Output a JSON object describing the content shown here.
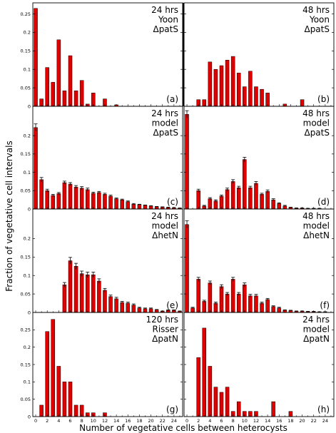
{
  "figure": {
    "xlabel": "Number of vegetative cells between heterocysts",
    "ylabel": "Fraction of vegetative cell intervals"
  },
  "colors": {
    "bar": "#e00000",
    "bar_edge": "#000000",
    "error_bar": "#000000"
  },
  "chart_data": [
    {
      "type": "bar",
      "panel": "(a)",
      "lines": [
        "24 hrs",
        "Yoon",
        "ΔpatS"
      ],
      "x": [
        0,
        1,
        2,
        3,
        4,
        5,
        6,
        7,
        8,
        9,
        10,
        11,
        12,
        13,
        14,
        15,
        16,
        17,
        18,
        19,
        20,
        21,
        22,
        23,
        24,
        25
      ],
      "values": [
        0.265,
        0.02,
        0.105,
        0.065,
        0.18,
        0.042,
        0.137,
        0.042,
        0.07,
        0.006,
        0.036,
        0,
        0.02,
        0,
        0.004,
        0,
        0,
        0,
        0,
        0,
        0,
        0,
        0,
        0,
        0,
        0
      ],
      "ylim": [
        0,
        0.28
      ],
      "yticks": [
        0,
        0.05,
        0.1,
        0.15,
        0.2,
        0.25
      ],
      "xticks": [
        0,
        2,
        4,
        6,
        8,
        10,
        12,
        14,
        16,
        18,
        20,
        22,
        24
      ]
    },
    {
      "type": "bar",
      "panel": "(b)",
      "lines": [
        "48 hrs",
        "Yoon",
        "ΔpatS"
      ],
      "x": [
        0,
        1,
        2,
        3,
        4,
        5,
        6,
        7,
        8,
        9,
        10,
        11,
        12,
        13,
        14,
        15,
        16,
        17,
        18,
        19,
        20,
        21,
        22,
        23,
        24,
        25
      ],
      "values": [
        0,
        0,
        0.018,
        0.018,
        0.12,
        0.1,
        0.11,
        0.125,
        0.135,
        0.09,
        0.053,
        0.095,
        0.053,
        0.046,
        0.036,
        0,
        0,
        0.006,
        0,
        0,
        0.018,
        0,
        0,
        0,
        0,
        0
      ],
      "ylim": [
        0,
        0.28
      ],
      "yticks": [
        0,
        0.05,
        0.1,
        0.15,
        0.2,
        0.25
      ],
      "xticks": [
        0,
        2,
        4,
        6,
        8,
        10,
        12,
        14,
        16,
        18,
        20,
        22,
        24
      ]
    },
    {
      "type": "bar",
      "panel": "(c)",
      "lines": [
        "24 hrs",
        "model",
        "ΔpatS"
      ],
      "x": [
        0,
        1,
        2,
        3,
        4,
        5,
        6,
        7,
        8,
        9,
        10,
        11,
        12,
        13,
        14,
        15,
        16,
        17,
        18,
        19,
        20,
        21,
        22,
        23,
        24,
        25
      ],
      "values": [
        0.222,
        0.08,
        0.05,
        0.037,
        0.042,
        0.072,
        0.068,
        0.06,
        0.057,
        0.053,
        0.043,
        0.045,
        0.04,
        0.035,
        0.028,
        0.025,
        0.02,
        0.013,
        0.012,
        0.01,
        0.008,
        0.006,
        0.005,
        0.004,
        0.003,
        0.002
      ],
      "errors": [
        0.01,
        0.006,
        0.004,
        0.003,
        0.003,
        0.004,
        0.004,
        0.004,
        0.004,
        0.004,
        0.003,
        0.003,
        0.003,
        0.003,
        0.002,
        0.002,
        0.002,
        0.002,
        0.001,
        0.001,
        0.001,
        0.001,
        0.001,
        0.001,
        0.001,
        0.001
      ],
      "ylim": [
        0,
        0.28
      ],
      "yticks": [
        0,
        0.05,
        0.1,
        0.15,
        0.2
      ],
      "xticks": [
        0,
        2,
        4,
        6,
        8,
        10,
        12,
        14,
        16,
        18,
        20,
        22,
        24
      ]
    },
    {
      "type": "bar",
      "panel": "(d)",
      "lines": [
        "48 hrs",
        "model",
        "ΔpatS"
      ],
      "x": [
        0,
        1,
        2,
        3,
        4,
        5,
        6,
        7,
        8,
        9,
        10,
        11,
        12,
        13,
        14,
        15,
        16,
        17,
        18,
        19,
        20,
        21,
        22,
        23,
        24,
        25
      ],
      "values": [
        0.258,
        0,
        0.05,
        0.008,
        0.028,
        0.022,
        0.035,
        0.053,
        0.075,
        0.058,
        0.135,
        0.058,
        0.07,
        0.04,
        0.048,
        0.025,
        0.015,
        0.008,
        0.004,
        0.002,
        0.002,
        0.001,
        0.001,
        0.001,
        0,
        0
      ],
      "errors": [
        0.01,
        0,
        0.004,
        0.002,
        0.003,
        0.003,
        0.003,
        0.004,
        0.005,
        0.004,
        0.006,
        0.004,
        0.005,
        0.003,
        0.004,
        0.003,
        0.002,
        0.002,
        0.001,
        0.001,
        0.001,
        0.001,
        0.001,
        0.001,
        0,
        0
      ],
      "ylim": [
        0,
        0.28
      ],
      "yticks": [
        0,
        0.05,
        0.1,
        0.15,
        0.2
      ],
      "xticks": [
        0,
        2,
        4,
        6,
        8,
        10,
        12,
        14,
        16,
        18,
        20,
        22,
        24
      ]
    },
    {
      "type": "bar",
      "panel": "(e)",
      "lines": [
        "24 hrs",
        "model",
        "ΔhetN"
      ],
      "x": [
        0,
        1,
        2,
        3,
        4,
        5,
        6,
        7,
        8,
        9,
        10,
        11,
        12,
        13,
        14,
        15,
        16,
        17,
        18,
        19,
        20,
        21,
        22,
        23,
        24,
        25
      ],
      "values": [
        0,
        0,
        0,
        0,
        0,
        0.075,
        0.14,
        0.125,
        0.105,
        0.102,
        0.102,
        0.085,
        0.06,
        0.043,
        0.037,
        0.027,
        0.025,
        0.02,
        0.012,
        0.01,
        0.01,
        0.007,
        0.003,
        0.006,
        0.006,
        0.003
      ],
      "errors": [
        0,
        0,
        0,
        0,
        0,
        0.006,
        0.009,
        0.008,
        0.007,
        0.007,
        0.007,
        0.006,
        0.005,
        0.004,
        0.004,
        0.003,
        0.003,
        0.003,
        0.002,
        0.002,
        0.002,
        0.001,
        0.001,
        0.001,
        0.001,
        0.001
      ],
      "ylim": [
        0,
        0.28
      ],
      "yticks": [
        0,
        0.05,
        0.1,
        0.15,
        0.2
      ],
      "xticks": [
        0,
        2,
        4,
        6,
        8,
        10,
        12,
        14,
        16,
        18,
        20,
        22,
        24
      ]
    },
    {
      "type": "bar",
      "panel": "(f)",
      "lines": [
        "48 hrs",
        "model",
        "ΔhetN"
      ],
      "x": [
        0,
        1,
        2,
        3,
        4,
        5,
        6,
        7,
        8,
        9,
        10,
        11,
        12,
        13,
        14,
        15,
        16,
        17,
        18,
        19,
        20,
        21,
        22,
        23,
        24,
        25
      ],
      "values": [
        0.238,
        0.012,
        0.09,
        0.03,
        0.08,
        0.025,
        0.07,
        0.05,
        0.09,
        0.05,
        0.075,
        0.045,
        0.045,
        0.025,
        0.035,
        0.016,
        0.012,
        0.006,
        0.005,
        0.003,
        0.003,
        0.002,
        0.002,
        0.001,
        0.001,
        0
      ],
      "errors": [
        0.01,
        0.002,
        0.005,
        0.003,
        0.005,
        0.003,
        0.005,
        0.004,
        0.005,
        0.004,
        0.005,
        0.004,
        0.004,
        0.003,
        0.003,
        0.002,
        0.002,
        0.001,
        0.001,
        0.001,
        0.001,
        0.001,
        0.001,
        0.001,
        0.001,
        0
      ],
      "ylim": [
        0,
        0.28
      ],
      "yticks": [
        0,
        0.05,
        0.1,
        0.15,
        0.2
      ],
      "xticks": [
        0,
        2,
        4,
        6,
        8,
        10,
        12,
        14,
        16,
        18,
        20,
        22,
        24
      ]
    },
    {
      "type": "bar",
      "panel": "(g)",
      "lines": [
        "120 hrs",
        "Risser",
        "ΔpatN"
      ],
      "x": [
        0,
        1,
        2,
        3,
        4,
        5,
        6,
        7,
        8,
        9,
        10,
        11,
        12,
        13,
        14,
        15,
        16,
        17,
        18,
        19,
        20,
        21,
        22,
        23,
        24,
        25
      ],
      "values": [
        0,
        0.033,
        0.245,
        0.28,
        0.145,
        0.1,
        0.1,
        0.033,
        0.033,
        0.011,
        0.011,
        0,
        0.011,
        0,
        0,
        0,
        0,
        0,
        0,
        0,
        0,
        0,
        0,
        0,
        0,
        0
      ],
      "ylim": [
        0,
        0.3
      ],
      "yticks": [
        0,
        0.05,
        0.1,
        0.15,
        0.2,
        0.25
      ],
      "xticks": [
        0,
        2,
        4,
        6,
        8,
        10,
        12,
        14,
        16,
        18,
        20,
        22,
        24
      ]
    },
    {
      "type": "bar",
      "panel": "(h)",
      "lines": [
        "24 hrs",
        "model",
        "ΔpatN"
      ],
      "x": [
        0,
        1,
        2,
        3,
        4,
        5,
        6,
        7,
        8,
        9,
        10,
        11,
        12,
        13,
        14,
        15,
        16,
        17,
        18,
        19,
        20,
        21,
        22,
        23,
        24,
        25
      ],
      "values": [
        0,
        0,
        0.17,
        0.255,
        0.145,
        0.085,
        0.07,
        0.085,
        0.015,
        0.043,
        0.015,
        0.015,
        0.015,
        0,
        0,
        0.043,
        0,
        0,
        0.015,
        0,
        0,
        0,
        0,
        0,
        0,
        0
      ],
      "ylim": [
        0,
        0.3
      ],
      "yticks": [
        0,
        0.05,
        0.1,
        0.15,
        0.2,
        0.25
      ],
      "xticks": [
        0,
        2,
        4,
        6,
        8,
        10,
        12,
        14,
        16,
        18,
        20,
        22,
        24
      ]
    }
  ]
}
